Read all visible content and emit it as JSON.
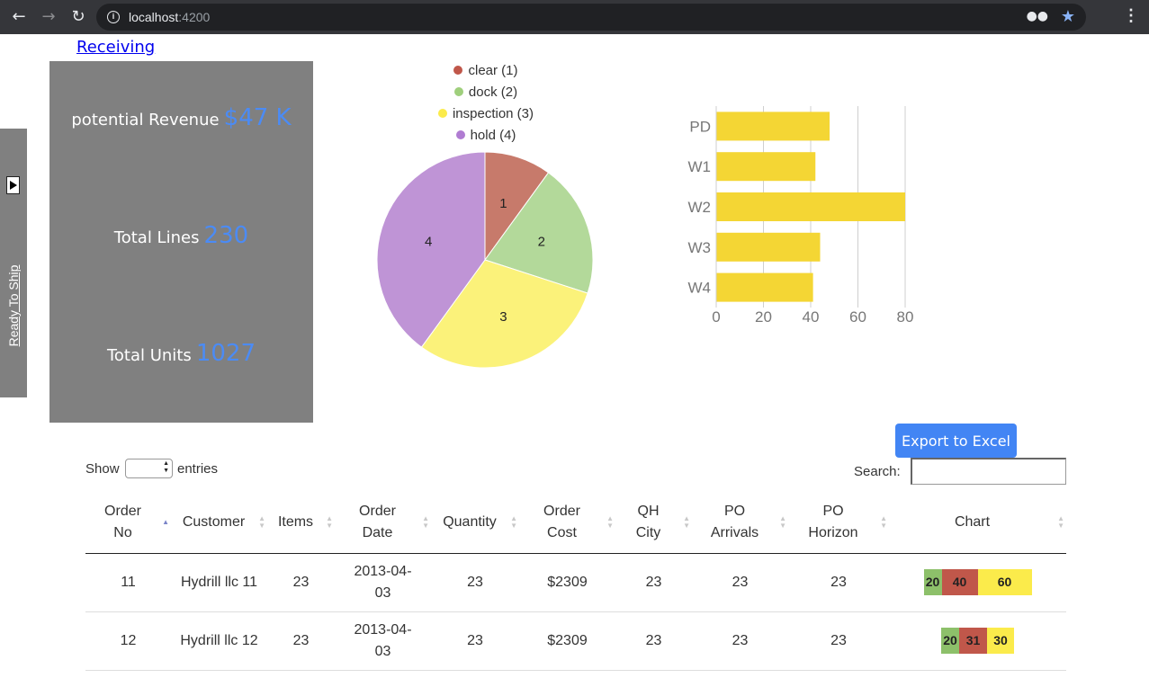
{
  "browser": {
    "url_host": "localhost",
    "url_port": ":4200"
  },
  "page": {
    "receiving_link": "Receiving",
    "side_tab_label": "Ready To Ship"
  },
  "stats": {
    "revenue_label": "potential Revenue",
    "revenue_value": "$47 K",
    "lines_label": "Total Lines",
    "lines_value": "230",
    "units_label": "Total Units",
    "units_value": "1027"
  },
  "chart_data": [
    {
      "type": "pie",
      "legend_position": "top",
      "slices": [
        {
          "label": "clear (1)",
          "value": 1,
          "data_label": "1",
          "color": "#c77a6b"
        },
        {
          "label": "dock (2)",
          "value": 2,
          "data_label": "2",
          "color": "#b3d99a"
        },
        {
          "label": "inspection (3)",
          "value": 3,
          "data_label": "3",
          "color": "#fbf27a"
        },
        {
          "label": "hold (4)",
          "value": 4,
          "data_label": "4",
          "color": "#bf94d6"
        }
      ],
      "legend_dot_colors": [
        "#c0574a",
        "#9fcf7c",
        "#fbeb4b",
        "#b07cd2"
      ]
    },
    {
      "type": "bar",
      "orientation": "horizontal",
      "categories": [
        "PD",
        "W1",
        "W2",
        "W3",
        "W4"
      ],
      "values": [
        48,
        42,
        80,
        44,
        41
      ],
      "color": "#f4d634",
      "xlim": [
        0,
        80
      ],
      "xticks": [
        "0",
        "20",
        "40",
        "60",
        "80"
      ],
      "grid": true
    }
  ],
  "controls": {
    "export_label": "Export to Excel",
    "show_label": "Show",
    "entries_label": "entries",
    "search_label": "Search:"
  },
  "table": {
    "headers": [
      {
        "label": "Order\nNo",
        "sort": "asc"
      },
      {
        "label": "Customer",
        "sort": "none"
      },
      {
        "label": "Items",
        "sort": "none"
      },
      {
        "label": "Order\nDate",
        "sort": "none"
      },
      {
        "label": "Quantity",
        "sort": "none"
      },
      {
        "label": "Order\nCost",
        "sort": "none"
      },
      {
        "label": "QH\nCity",
        "sort": "none"
      },
      {
        "label": "PO\nArrivals",
        "sort": "none"
      },
      {
        "label": "PO\nHorizon",
        "sort": "none"
      },
      {
        "label": "Chart",
        "sort": "none"
      }
    ],
    "rows": [
      {
        "cells": [
          "11",
          "Hydrill llc 11",
          "23",
          "2013-04-\n03",
          "23",
          "$2309",
          "23",
          "23",
          "23"
        ],
        "mini_chart": [
          {
            "value": 20,
            "label": "20",
            "color": "#8dc06a"
          },
          {
            "value": 40,
            "label": "40",
            "color": "#c0574a"
          },
          {
            "value": 60,
            "label": "60",
            "color": "#fbeb4b"
          }
        ]
      },
      {
        "cells": [
          "12",
          "Hydrill llc 12",
          "23",
          "2013-04-\n03",
          "23",
          "$2309",
          "23",
          "23",
          "23"
        ],
        "mini_chart": [
          {
            "value": 20,
            "label": "20",
            "color": "#8dc06a"
          },
          {
            "value": 31,
            "label": "31",
            "color": "#c0574a"
          },
          {
            "value": 30,
            "label": "30",
            "color": "#fbeb4b"
          }
        ]
      }
    ]
  }
}
